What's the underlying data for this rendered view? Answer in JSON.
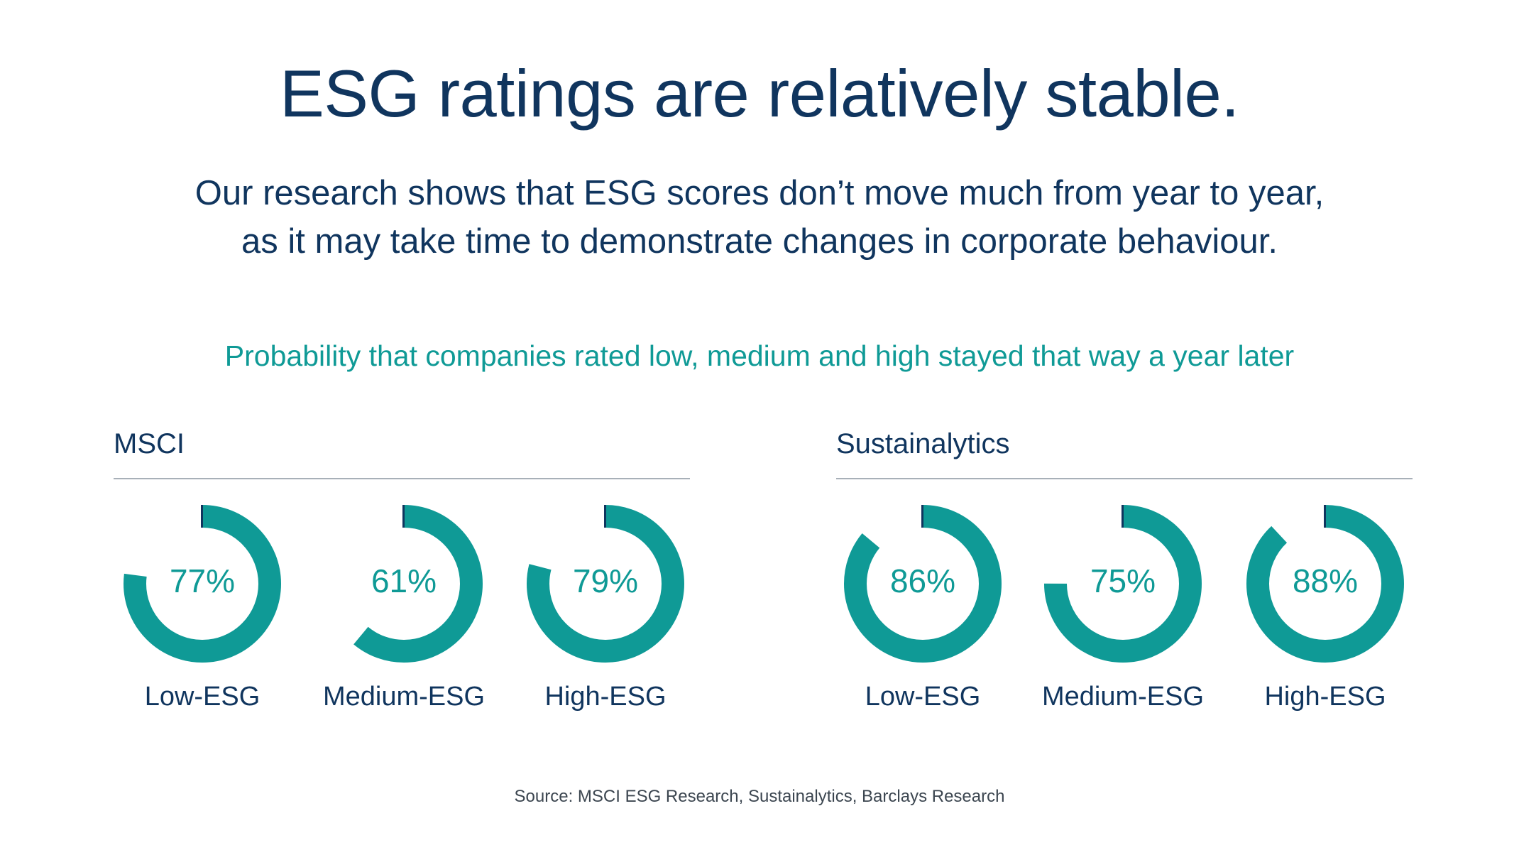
{
  "title": "ESG ratings are relatively stable.",
  "subtitle_lines": [
    "Our research shows that ESG scores don’t move much from year to year,",
    "as it may take time to demonstrate changes in corporate behaviour."
  ],
  "caption": "Probability that companies rated low, medium and high stayed that way a year later",
  "source": "Source: MSCI ESG Research, Sustainalytics, Barclays Research",
  "colors": {
    "arc": "#0f9a96",
    "title": "#10355e",
    "marker": "#10355e"
  },
  "chart_data": [
    {
      "type": "pie",
      "title": "MSCI",
      "categories": [
        "Low-ESG",
        "Medium-ESG",
        "High-ESG"
      ],
      "values": [
        77,
        61,
        79
      ],
      "value_labels": [
        "77%",
        "61%",
        "79%"
      ],
      "unit": "%"
    },
    {
      "type": "pie",
      "title": "Sustainalytics",
      "categories": [
        "Low-ESG",
        "Medium-ESG",
        "High-ESG"
      ],
      "values": [
        86,
        75,
        88
      ],
      "value_labels": [
        "86%",
        "75%",
        "88%"
      ],
      "unit": "%"
    }
  ]
}
